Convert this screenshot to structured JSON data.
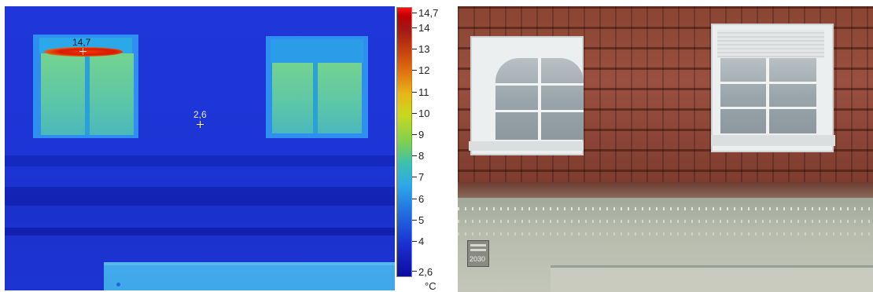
{
  "thermal_image": {
    "spot_max": {
      "label": "14,7",
      "icon": "crosshair-icon"
    },
    "spot_center": {
      "label": "2,6",
      "icon": "crosshair-icon"
    }
  },
  "color_scale": {
    "max_label": "14,7",
    "min_label": "2,6",
    "ticks": [
      "14",
      "13",
      "12",
      "11",
      "10",
      "9",
      "8",
      "7",
      "6",
      "5",
      "4"
    ],
    "unit": "°C",
    "colors": {
      "hot": "#c00000",
      "warm": "#e8b618",
      "mid": "#7ed050",
      "cool": "#2ea8e8",
      "cold": "#0c0ca0"
    }
  },
  "photo": {
    "house_number": "2030"
  }
}
